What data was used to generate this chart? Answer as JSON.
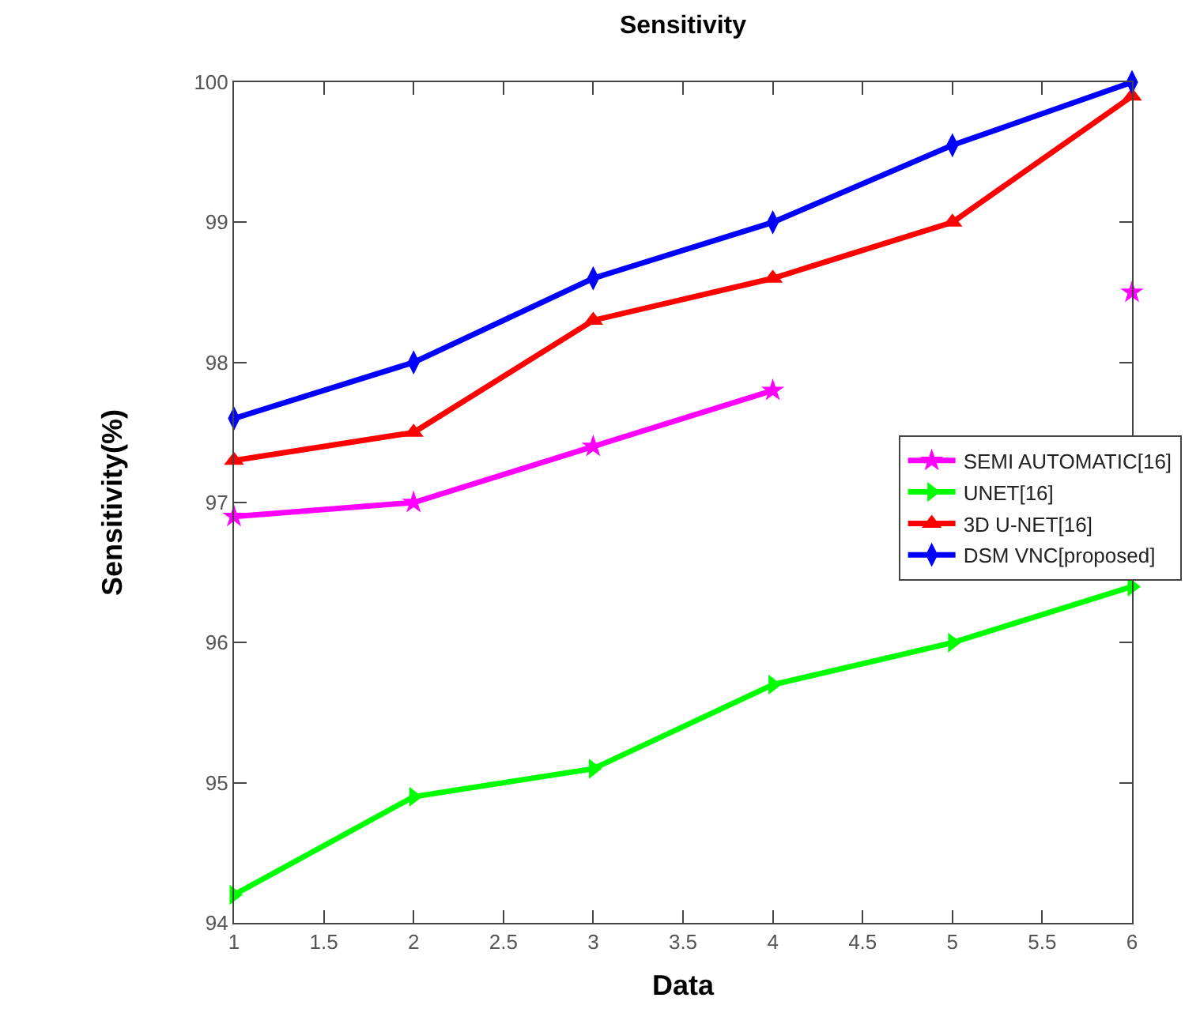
{
  "chart_data": {
    "type": "line",
    "title": "Sensitivity",
    "xlabel": "Data",
    "ylabel": "Sensitivity(%)",
    "x": [
      1,
      2,
      3,
      4,
      5,
      6
    ],
    "series": [
      {
        "name": "SEMI AUTOMATIC[16]",
        "color": "#ff00ff",
        "marker": "star",
        "values": [
          96.9,
          97.0,
          97.4,
          97.8,
          null,
          98.5
        ]
      },
      {
        "name": "UNET[16]",
        "color": "#00ff00",
        "marker": "triangle-right",
        "values": [
          94.2,
          94.9,
          95.1,
          95.7,
          96.0,
          96.4
        ]
      },
      {
        "name": "3D U-NET[16]",
        "color": "#ff0000",
        "marker": "triangle",
        "values": [
          97.3,
          97.5,
          98.3,
          98.6,
          99.0,
          99.9
        ]
      },
      {
        "name": "DSM VNC[proposed]",
        "color": "#0000ff",
        "marker": "diamond",
        "values": [
          97.6,
          98.0,
          98.6,
          99.0,
          99.55,
          100.0
        ]
      }
    ],
    "xlim": [
      1,
      6
    ],
    "xticks": [
      1,
      1.5,
      2,
      2.5,
      3,
      3.5,
      4,
      4.5,
      5,
      5.5,
      6
    ],
    "ylim": [
      94,
      100
    ],
    "yticks": [
      94,
      95,
      96,
      97,
      98,
      99,
      100
    ],
    "grid": false,
    "legend": "right",
    "line_style": "solid"
  }
}
